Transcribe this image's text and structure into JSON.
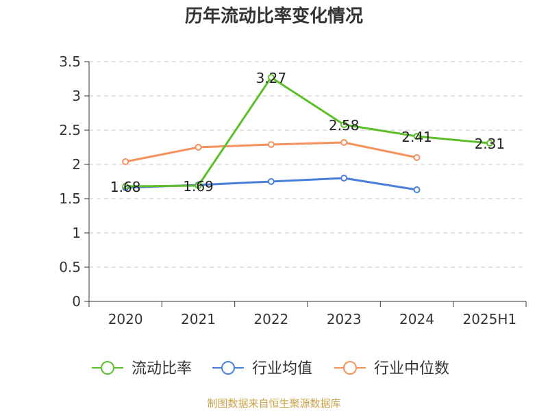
{
  "title": "历年流动比率变化情况",
  "source": "制图数据来自恒生聚源数据库",
  "chart_data": {
    "type": "line",
    "categories": [
      "2020",
      "2021",
      "2022",
      "2023",
      "2024",
      "2025H1"
    ],
    "ylim": [
      0,
      3.5
    ],
    "yticks": [
      "0",
      "0.5",
      "1",
      "1.5",
      "2",
      "2.5",
      "3",
      "3.5"
    ],
    "grid": true,
    "legend_position": "bottom",
    "series": [
      {
        "name": "流动比率",
        "color": "#5cbf2a",
        "values": [
          1.68,
          1.69,
          3.27,
          2.58,
          2.41,
          2.31
        ],
        "labels": [
          "1.68",
          "1.69",
          "3.27",
          "2.58",
          "2.41",
          "2.31"
        ]
      },
      {
        "name": "行业均值",
        "color": "#4a7fd9",
        "values": [
          1.66,
          1.7,
          1.75,
          1.8,
          1.63,
          null
        ]
      },
      {
        "name": "行业中位数",
        "color": "#f5915a",
        "values": [
          2.04,
          2.25,
          2.29,
          2.32,
          2.1,
          null
        ]
      }
    ]
  }
}
